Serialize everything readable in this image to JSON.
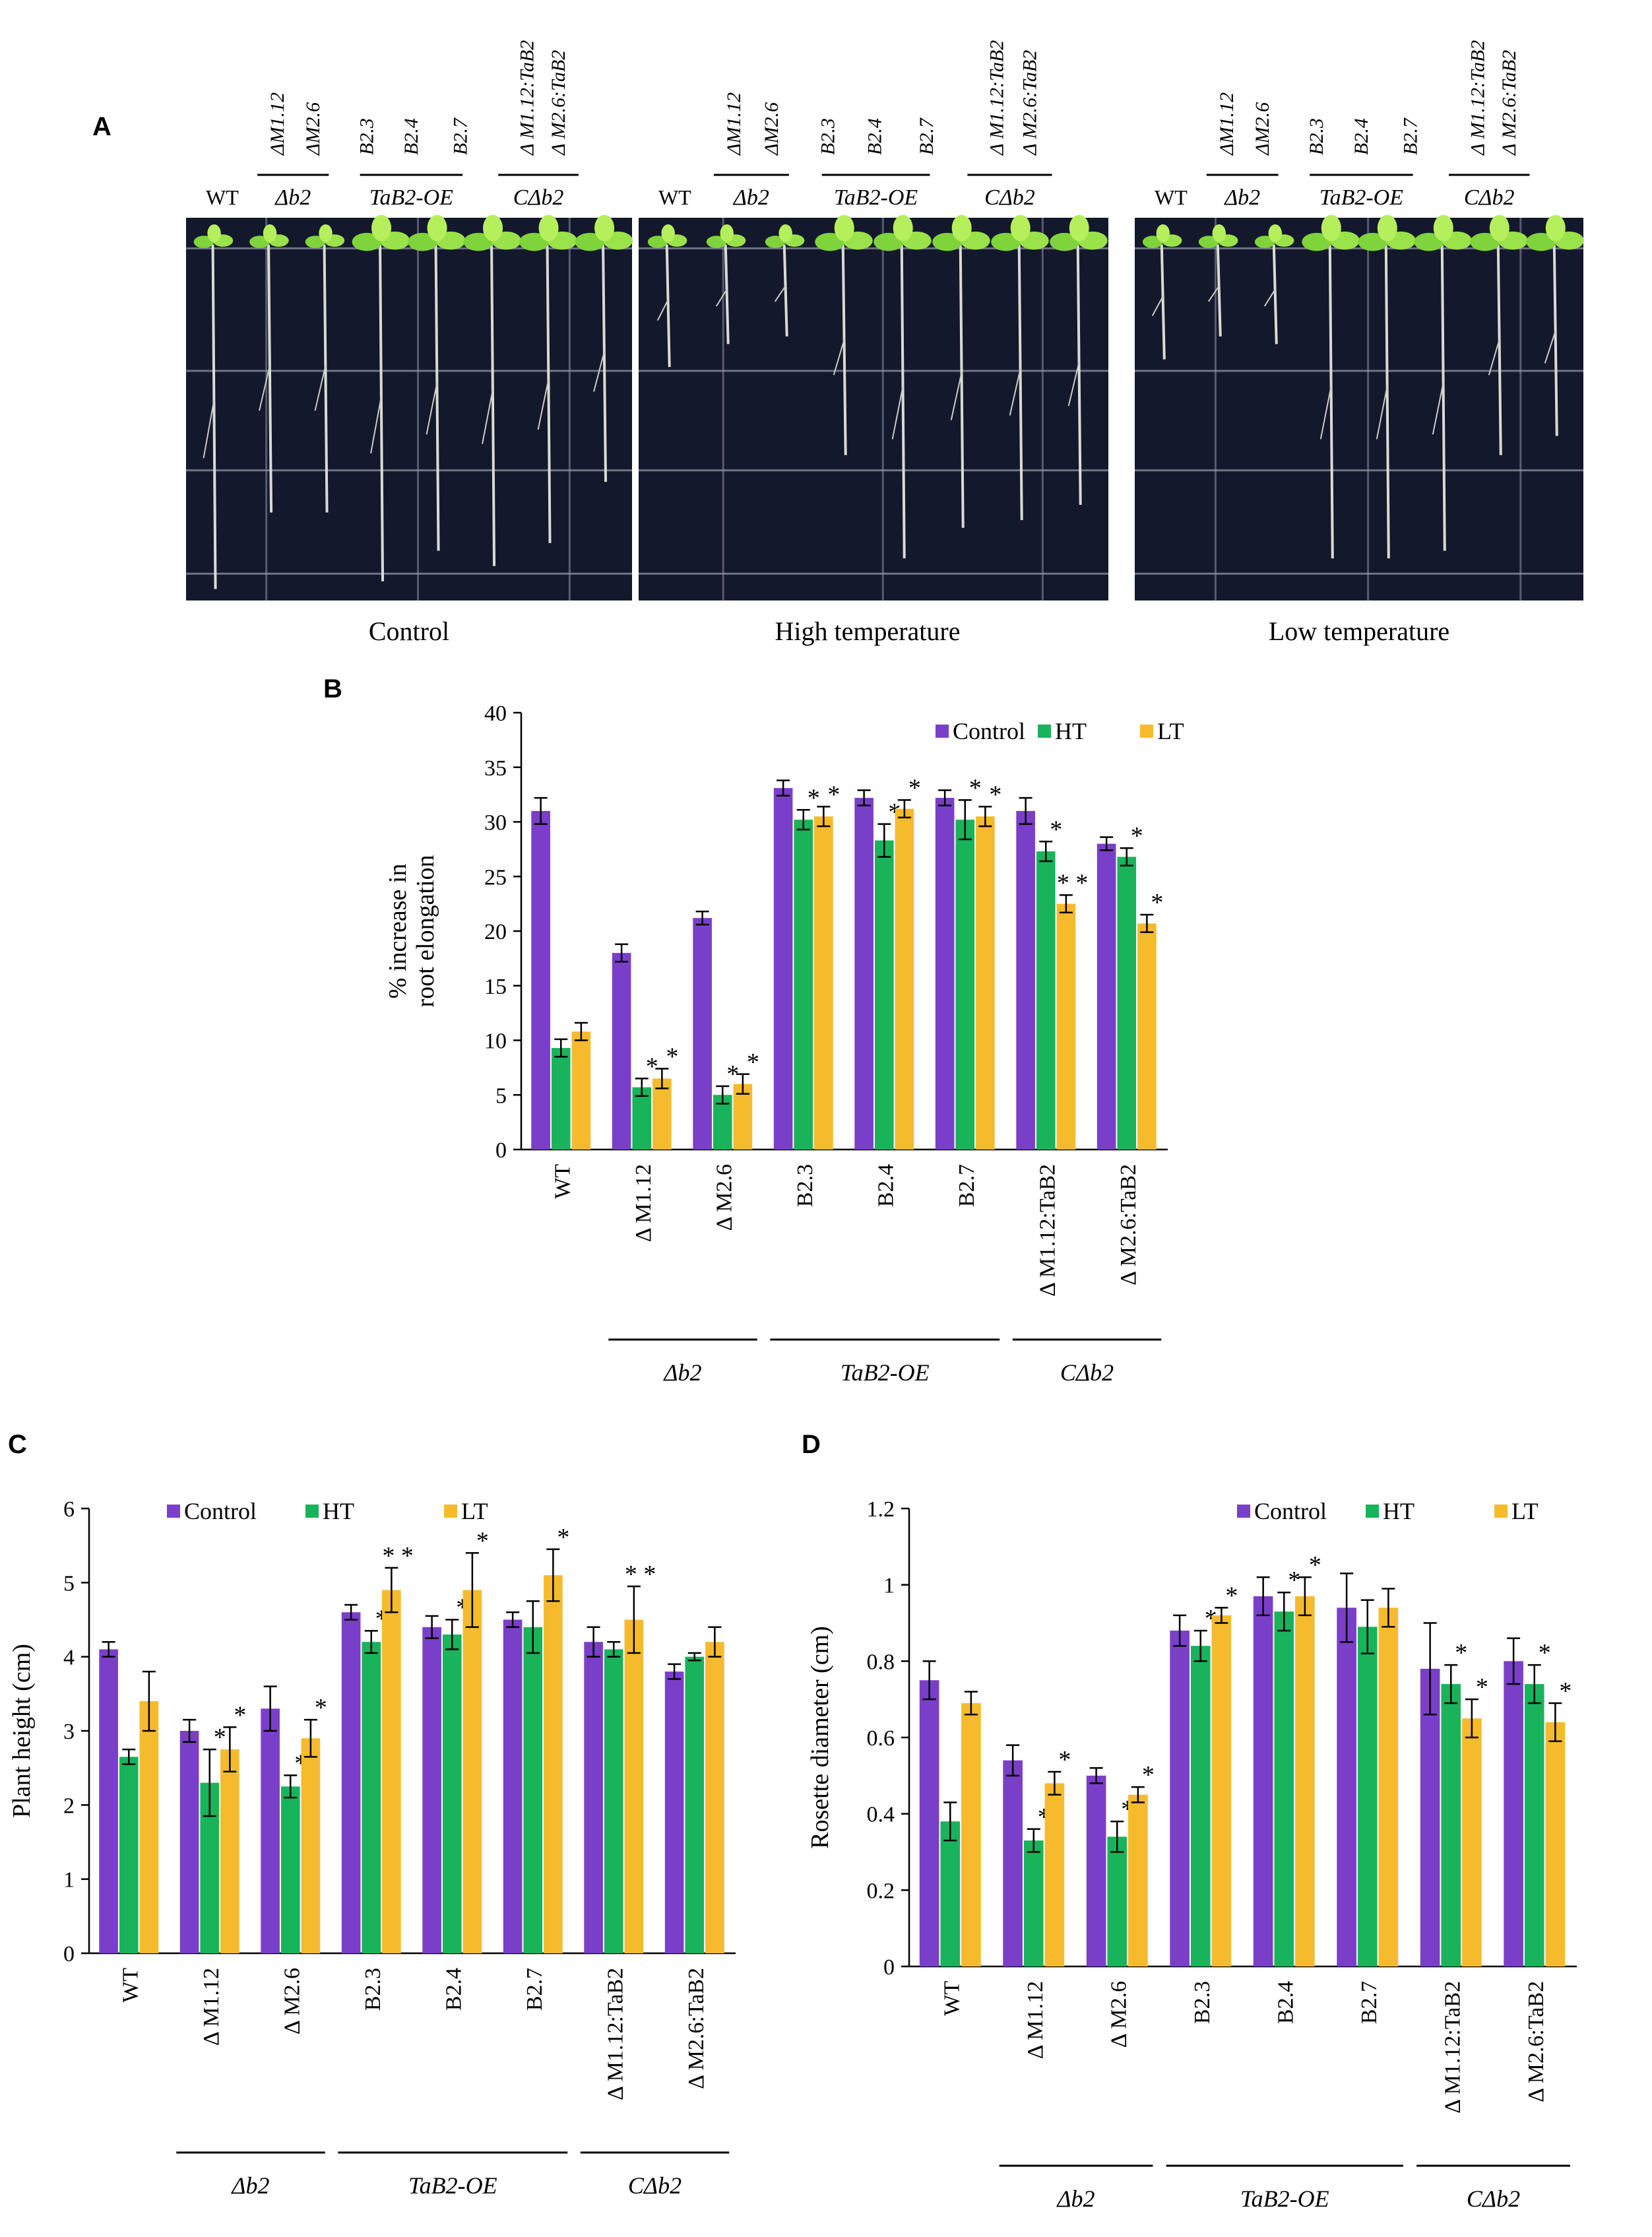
{
  "panels": {
    "a": "A",
    "b": "B",
    "c": "C",
    "d": "D"
  },
  "photos": [
    {
      "caption": "Control",
      "wt": "WT",
      "lines": [
        "ΔM1.12",
        "ΔM2.6",
        "B2.3",
        "B2.4",
        "B2.7",
        "Δ M1.12:TaB2",
        "Δ M2.6:TaB2"
      ],
      "groups": [
        "Δb2",
        "TaB2-OE",
        "CΔb2"
      ]
    },
    {
      "caption": "High temperature",
      "wt": "WT",
      "lines": [
        "ΔM1.12",
        "ΔM2.6",
        "B2.3",
        "B2.4",
        "B2.7",
        "Δ M1.12:TaB2",
        "Δ M2.6:TaB2"
      ],
      "groups": [
        "Δb2",
        "TaB2-OE",
        "CΔb2"
      ]
    },
    {
      "caption": "Low temperature",
      "wt": "WT",
      "lines": [
        "ΔM1.12",
        "ΔM2.6",
        "B2.3",
        "B2.4",
        "B2.7",
        "Δ M1.12:TaB2",
        "Δ M2.6:TaB2"
      ],
      "groups": [
        "Δb2",
        "TaB2-OE",
        "CΔb2"
      ]
    }
  ],
  "colors": {
    "Control": "#7a3fc8",
    "HT": "#19b35b",
    "LT": "#f6bb2c"
  },
  "chart_data": [
    {
      "id": "B",
      "type": "bar",
      "ylabel": [
        "% increase in",
        "root elongation"
      ],
      "ylim": [
        0,
        40
      ],
      "yticks": [
        0,
        5,
        10,
        15,
        20,
        25,
        30,
        35,
        40
      ],
      "legend_position": "top-right",
      "categories": [
        "WT",
        "Δ M1.12",
        "Δ M2.6",
        "B2.3",
        "B2.4",
        "B2.7",
        "Δ M1.12:TaB2",
        "Δ M2.6:TaB2"
      ],
      "groups": [
        {
          "label": "Δb2",
          "from": 1,
          "to": 2
        },
        {
          "label": "TaB2-OE",
          "from": 3,
          "to": 5
        },
        {
          "label": "CΔb2",
          "from": 6,
          "to": 7
        }
      ],
      "series": [
        {
          "name": "Control",
          "values": [
            31,
            18,
            21.2,
            33.1,
            32.2,
            32.2,
            31,
            28
          ],
          "errors": [
            1.2,
            0.8,
            0.6,
            0.7,
            0.7,
            0.7,
            1.2,
            0.6
          ],
          "stars": [
            0,
            0,
            0,
            0,
            0,
            0,
            0,
            0
          ]
        },
        {
          "name": "HT",
          "values": [
            9.3,
            5.7,
            5,
            30.2,
            28.3,
            30.2,
            27.3,
            26.8
          ],
          "errors": [
            0.8,
            0.8,
            0.8,
            0.9,
            1.5,
            1.8,
            0.9,
            0.8
          ],
          "stars": [
            0,
            1,
            1,
            1,
            1,
            1,
            1,
            1
          ]
        },
        {
          "name": "LT",
          "values": [
            10.8,
            6.5,
            6,
            30.5,
            31.2,
            30.5,
            22.5,
            20.7
          ],
          "errors": [
            0.8,
            0.9,
            0.9,
            0.9,
            0.8,
            0.9,
            0.8,
            0.8
          ],
          "stars": [
            0,
            1,
            1,
            1,
            1,
            1,
            2,
            1
          ]
        }
      ]
    },
    {
      "id": "C",
      "type": "bar",
      "ylabel": [
        "Plant height (cm)"
      ],
      "ylim": [
        0,
        6
      ],
      "yticks": [
        0,
        1,
        2,
        3,
        4,
        5,
        6
      ],
      "legend_position": "top-left",
      "categories": [
        "WT",
        "Δ M1.12",
        "Δ M2.6",
        "B2.3",
        "B2.4",
        "B2.7",
        "Δ M1.12:TaB2",
        "Δ M2.6:TaB2"
      ],
      "groups": [
        {
          "label": "Δb2",
          "from": 1,
          "to": 2
        },
        {
          "label": "TaB2-OE",
          "from": 3,
          "to": 5
        },
        {
          "label": "CΔb2",
          "from": 6,
          "to": 7
        }
      ],
      "series": [
        {
          "name": "Control",
          "values": [
            4.1,
            3,
            3.3,
            4.6,
            4.4,
            4.5,
            4.2,
            3.8
          ],
          "errors": [
            0.1,
            0.15,
            0.3,
            0.1,
            0.15,
            0.1,
            0.2,
            0.1
          ],
          "stars": [
            0,
            0,
            0,
            0,
            0,
            0,
            0,
            0
          ]
        },
        {
          "name": "HT",
          "values": [
            2.65,
            2.3,
            2.25,
            4.2,
            4.3,
            4.4,
            4.1,
            4
          ],
          "errors": [
            0.1,
            0.45,
            0.15,
            0.15,
            0.2,
            0.35,
            0.1,
            0.05
          ],
          "stars": [
            0,
            1,
            1,
            1,
            1,
            0,
            0,
            0
          ]
        },
        {
          "name": "LT",
          "values": [
            3.4,
            2.75,
            2.9,
            4.9,
            4.9,
            5.1,
            4.5,
            4.2
          ],
          "errors": [
            0.4,
            0.3,
            0.25,
            0.3,
            0.5,
            0.35,
            0.45,
            0.2
          ],
          "stars": [
            0,
            1,
            1,
            2,
            1,
            1,
            2,
            0
          ]
        }
      ]
    },
    {
      "id": "D",
      "type": "bar",
      "ylabel": [
        "Rosette diameter (cm)"
      ],
      "ylim": [
        0,
        1.2
      ],
      "yticks": [
        "0",
        "0.2",
        "0.4",
        "0.6",
        "0.8",
        "1",
        "1.2"
      ],
      "legend_position": "top-right",
      "categories": [
        "WT",
        "Δ M1.12",
        "Δ M2.6",
        "B2.3",
        "B2.4",
        "B2.7",
        "Δ M1.12:TaB2",
        "Δ M2.6:TaB2"
      ],
      "groups": [
        {
          "label": "Δb2",
          "from": 1,
          "to": 2
        },
        {
          "label": "TaB2-OE",
          "from": 3,
          "to": 5
        },
        {
          "label": "CΔb2",
          "from": 6,
          "to": 7
        }
      ],
      "series": [
        {
          "name": "Control",
          "values": [
            0.75,
            0.54,
            0.5,
            0.88,
            0.97,
            0.94,
            0.78,
            0.8
          ],
          "errors": [
            0.05,
            0.04,
            0.02,
            0.04,
            0.05,
            0.09,
            0.12,
            0.06
          ],
          "stars": [
            0,
            0,
            0,
            0,
            0,
            0,
            0,
            0
          ]
        },
        {
          "name": "HT",
          "values": [
            0.38,
            0.33,
            0.34,
            0.84,
            0.93,
            0.89,
            0.74,
            0.74
          ],
          "errors": [
            0.05,
            0.03,
            0.04,
            0.04,
            0.05,
            0.07,
            0.05,
            0.05
          ],
          "stars": [
            0,
            1,
            1,
            1,
            1,
            0,
            1,
            1
          ]
        },
        {
          "name": "LT",
          "values": [
            0.69,
            0.48,
            0.45,
            0.92,
            0.97,
            0.94,
            0.65,
            0.64
          ],
          "errors": [
            0.03,
            0.03,
            0.02,
            0.02,
            0.05,
            0.05,
            0.05,
            0.05
          ],
          "stars": [
            0,
            1,
            1,
            1,
            1,
            0,
            1,
            1
          ]
        }
      ]
    }
  ]
}
